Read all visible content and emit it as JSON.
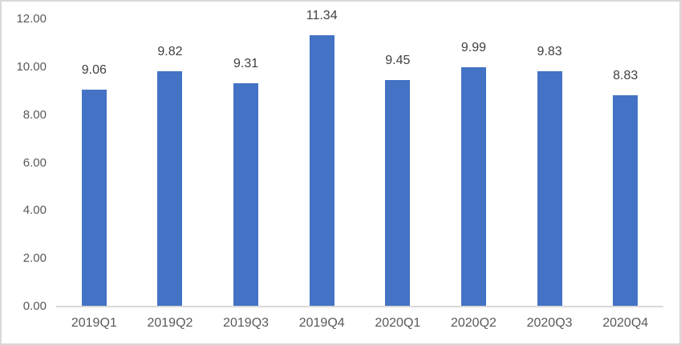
{
  "chart_data": {
    "type": "bar",
    "categories": [
      "2019Q1",
      "2019Q2",
      "2019Q3",
      "2019Q4",
      "2020Q1",
      "2020Q2",
      "2020Q3",
      "2020Q4"
    ],
    "values": [
      9.06,
      9.82,
      9.31,
      11.34,
      9.45,
      9.99,
      9.83,
      8.83
    ],
    "data_labels": [
      "9.06",
      "9.82",
      "9.31",
      "11.34",
      "9.45",
      "9.99",
      "9.83",
      "8.83"
    ],
    "title": "",
    "xlabel": "",
    "ylabel": "",
    "ylim": [
      0,
      12
    ],
    "y_ticks": [
      0,
      2,
      4,
      6,
      8,
      10,
      12
    ],
    "y_tick_labels": [
      "0.00",
      "2.00",
      "4.00",
      "6.00",
      "8.00",
      "10.00",
      "12.00"
    ],
    "grid": false,
    "legend": false,
    "colors": {
      "bar_fill": "#4472C4",
      "axis_line": "#D9D9D9",
      "y_tick_text": "#595959",
      "x_tick_text": "#595959",
      "data_label_text": "#404040",
      "chart_border": "#D9D9D9",
      "background": "#FFFFFF"
    }
  }
}
